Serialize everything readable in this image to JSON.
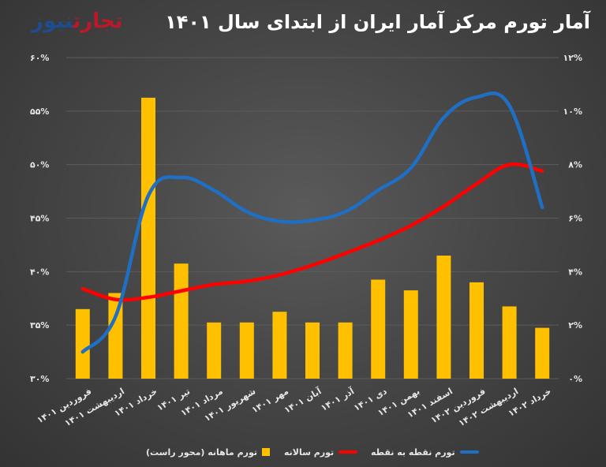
{
  "header": {
    "title": "آمار تورم مرکز آمار ایران از ابتدای سال ۱۴۰۱",
    "logo_part1": "تجارت",
    "logo_part2": "نیوز"
  },
  "legend": {
    "blue": "تورم نقطه به نقطه",
    "red": "تورم سالانه",
    "bars": "تورم ماهانه (محور راست)"
  },
  "colors": {
    "bars": "#ffc000",
    "yearly": "#ff0000",
    "point": "#1f6fc4",
    "grid": "#5c5c5c"
  },
  "chart_data": {
    "type": "bar+line",
    "categories": [
      "فروردین ۱۴۰۱",
      "اردیبهشت ۱۴۰۱",
      "خرداد ۱۴۰۱",
      "تیر ۱۴۰۱",
      "مرداد ۱۴۰۱",
      "شهریور ۱۴۰۱",
      "مهر ۱۴۰۱",
      "آبان ۱۴۰۱",
      "آذر ۱۴۰۱",
      "دی ۱۴۰۱",
      "بهمن ۱۴۰۱",
      "اسفند ۱۴۰۱",
      "فروردین ۱۴۰۲",
      "اردیبهشت ۱۴۰۲",
      "خرداد ۱۴۰۲"
    ],
    "left_axis": {
      "range": [
        30,
        60
      ],
      "ticks": [
        "۳۰%",
        "۳۵%",
        "۴۰%",
        "۴۵%",
        "۵۰%",
        "۵۵%",
        "۶۰%"
      ]
    },
    "right_axis": {
      "range": [
        0,
        12
      ],
      "ticks": [
        "۰%",
        "۲%",
        "۴%",
        "۶%",
        "۸%",
        "۱۰%",
        "۱۲%"
      ]
    },
    "grid": true,
    "legend_position": "bottom",
    "series": [
      {
        "name": "تورم ماهانه (محور راست)",
        "type": "bar",
        "axis": "right",
        "values": [
          2.6,
          3.2,
          10.5,
          4.3,
          2.1,
          2.1,
          2.5,
          2.1,
          2.1,
          3.7,
          3.3,
          4.6,
          3.6,
          2.7,
          1.9
        ]
      },
      {
        "name": "تورم سالانه",
        "type": "line",
        "axis": "left",
        "values": [
          38.4,
          37.4,
          37.6,
          38.2,
          38.8,
          39.1,
          39.7,
          40.6,
          41.7,
          42.9,
          44.3,
          46.1,
          48.2,
          50.0,
          49.4
        ]
      },
      {
        "name": "تورم نقطه به نقطه",
        "type": "line",
        "axis": "left",
        "values": [
          32.5,
          35.8,
          47.1,
          48.8,
          47.6,
          45.6,
          44.7,
          44.8,
          45.6,
          47.6,
          49.7,
          54.4,
          56.3,
          55.5,
          46.0
        ]
      }
    ]
  }
}
